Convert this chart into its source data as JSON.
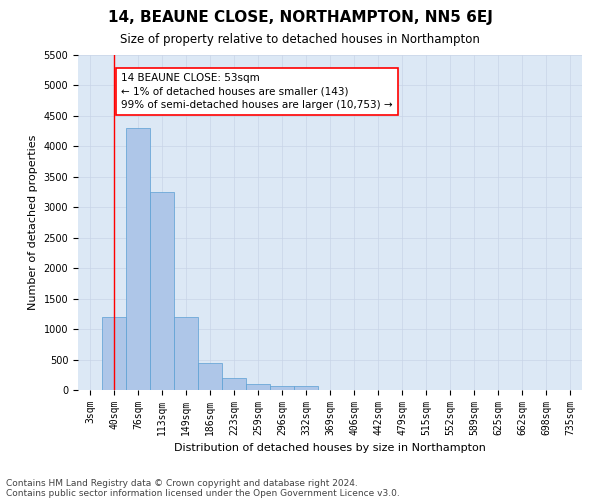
{
  "title": "14, BEAUNE CLOSE, NORTHAMPTON, NN5 6EJ",
  "subtitle": "Size of property relative to detached houses in Northampton",
  "xlabel": "Distribution of detached houses by size in Northampton",
  "ylabel": "Number of detached properties",
  "footer_line1": "Contains HM Land Registry data © Crown copyright and database right 2024.",
  "footer_line2": "Contains public sector information licensed under the Open Government Licence v3.0.",
  "categories": [
    "3sqm",
    "40sqm",
    "76sqm",
    "113sqm",
    "149sqm",
    "186sqm",
    "223sqm",
    "259sqm",
    "296sqm",
    "332sqm",
    "369sqm",
    "406sqm",
    "442sqm",
    "479sqm",
    "515sqm",
    "552sqm",
    "589sqm",
    "625sqm",
    "662sqm",
    "698sqm",
    "735sqm"
  ],
  "bar_heights": [
    0,
    1200,
    4300,
    3250,
    1200,
    450,
    200,
    100,
    70,
    70,
    0,
    0,
    0,
    0,
    0,
    0,
    0,
    0,
    0,
    0,
    0
  ],
  "bar_color": "#aec6e8",
  "bar_edge_color": "#5a9fd4",
  "annotation_text": "14 BEAUNE CLOSE: 53sqm\n← 1% of detached houses are smaller (143)\n99% of semi-detached houses are larger (10,753) →",
  "property_line_x": 1,
  "ylim": [
    0,
    5500
  ],
  "yticks": [
    0,
    500,
    1000,
    1500,
    2000,
    2500,
    3000,
    3500,
    4000,
    4500,
    5000,
    5500
  ],
  "grid_color": "#c8d4e8",
  "plot_bg_color": "#dce8f5",
  "fig_bg_color": "#ffffff",
  "title_fontsize": 11,
  "subtitle_fontsize": 8.5,
  "axis_label_fontsize": 8,
  "tick_fontsize": 7,
  "annotation_fontsize": 7.5,
  "footer_fontsize": 6.5
}
